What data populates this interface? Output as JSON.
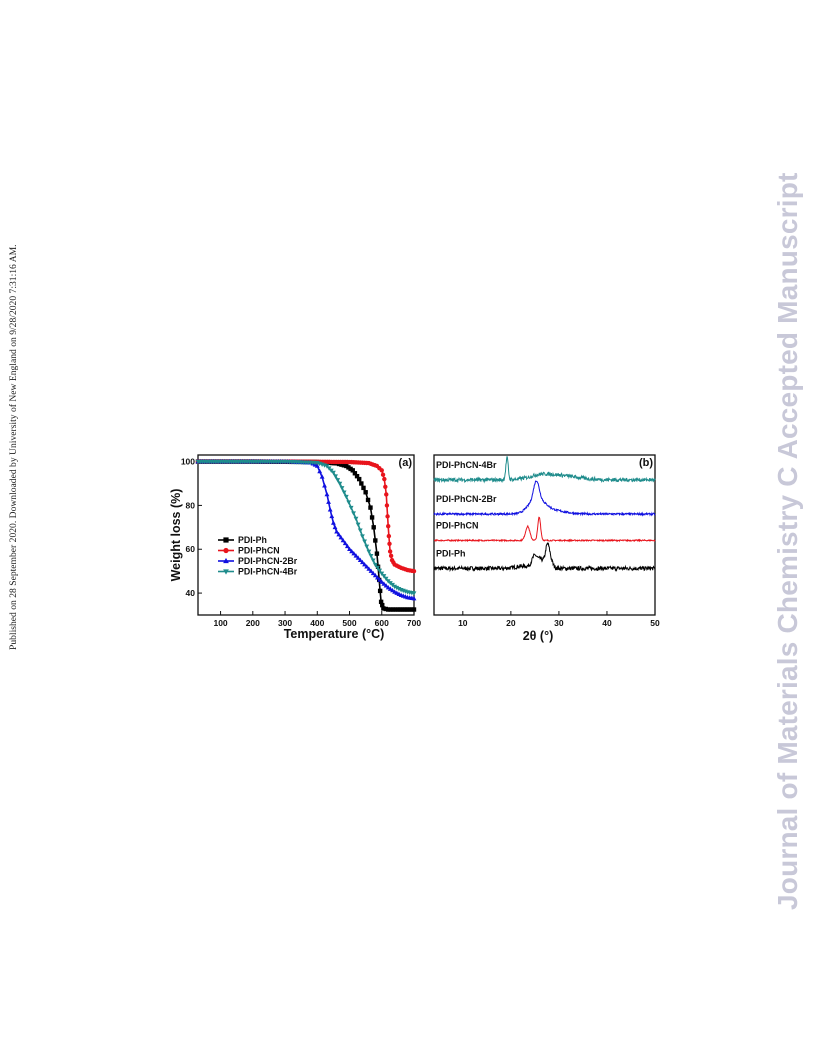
{
  "sidebar_text": "Published on 28 September 2020. Downloaded by University of New England on 9/28/2020 7:31:16 AM.",
  "watermark_text": "Journal of Materials Chemistry C Accepted Manuscript",
  "chart_data": [
    {
      "panel_label": "(a)",
      "type": "line",
      "xlabel": "Temperature (°C)",
      "ylabel": "Weight loss (%)",
      "xlim": [
        30,
        700
      ],
      "ylim": [
        30,
        103
      ],
      "xticks": [
        100,
        200,
        300,
        400,
        500,
        600,
        700
      ],
      "yticks": [
        40,
        60,
        80,
        100
      ],
      "legend_position": "left-middle",
      "series": [
        {
          "name": "PDI-Ph",
          "color": "#000000",
          "marker": "square",
          "x": [
            30,
            200,
            400,
            460,
            490,
            510,
            530,
            550,
            565,
            575,
            585,
            592,
            598,
            605,
            620,
            650,
            700
          ],
          "y": [
            100,
            100,
            99.8,
            99.2,
            98,
            96,
            92,
            86,
            79,
            70,
            58,
            46,
            36,
            33,
            32.5,
            32.5,
            32.5
          ]
        },
        {
          "name": "PDI-PhCN",
          "color": "#e8141c",
          "marker": "circle",
          "x": [
            30,
            300,
            500,
            560,
            585,
            600,
            608,
            614,
            618,
            622,
            626,
            632,
            640,
            660,
            680,
            700
          ],
          "y": [
            100,
            100,
            99.8,
            99.3,
            98,
            96,
            92,
            85,
            75,
            66,
            59,
            55,
            53,
            51.5,
            50.5,
            50
          ]
        },
        {
          "name": "PDI-PhCN-2Br",
          "color": "#1010e0",
          "marker": "triangle-up",
          "x": [
            30,
            300,
            380,
            400,
            415,
            430,
            440,
            450,
            460,
            480,
            500,
            520,
            540,
            560,
            580,
            600,
            620,
            640,
            660,
            680,
            700
          ],
          "y": [
            100,
            100,
            99.5,
            98,
            93,
            85,
            78,
            72,
            68,
            64,
            60,
            57,
            54,
            51,
            48,
            45,
            42.5,
            40.5,
            39,
            38,
            37.5
          ]
        },
        {
          "name": "PDI-PhCN-4Br",
          "color": "#1f8c8c",
          "marker": "triangle-down",
          "x": [
            30,
            300,
            400,
            430,
            450,
            470,
            490,
            505,
            520,
            540,
            560,
            580,
            600,
            620,
            640,
            660,
            680,
            700
          ],
          "y": [
            100,
            100,
            99.5,
            98,
            95,
            90,
            84,
            79,
            74,
            66,
            59,
            53,
            49,
            45.5,
            43,
            41.5,
            40.5,
            40
          ]
        }
      ]
    },
    {
      "panel_label": "(b)",
      "type": "line",
      "xlabel": "2θ (°)",
      "xlim": [
        4,
        50
      ],
      "xticks": [
        10,
        20,
        30,
        40,
        50
      ],
      "yticks": [],
      "series": [
        {
          "name": "PDI-Ph",
          "color": "#000000",
          "baseline": 30,
          "peaks": [
            [
              22.5,
              1.5,
              1.5
            ],
            [
              25.0,
              8,
              0.6
            ],
            [
              26.3,
              5,
              0.5
            ],
            [
              27.6,
              14,
              0.45
            ],
            [
              28.3,
              4,
              0.5
            ]
          ],
          "noise": 1.3
        },
        {
          "name": "PDI-PhCN",
          "color": "#e8141c",
          "baseline": 48,
          "peaks": [
            [
              23.5,
              9,
              0.45
            ],
            [
              25.9,
              15,
              0.3
            ]
          ],
          "noise": 0.4
        },
        {
          "name": "PDI-PhCN-2Br",
          "color": "#1010e0",
          "baseline": 65,
          "peaks": [
            [
              25.3,
              14,
              0.6
            ],
            [
              26.3,
              5,
              1.2
            ],
            [
              24.0,
              4,
              1.0
            ],
            [
              27.5,
              3,
              3
            ]
          ],
          "noise": 0.6
        },
        {
          "name": "PDI-PhCN-4Br",
          "color": "#1f8c8c",
          "baseline": 87,
          "peaks": [
            [
              19.2,
              14,
              0.25
            ],
            [
              29.5,
              3,
              4
            ],
            [
              26.0,
              1.5,
              2
            ]
          ],
          "noise": 1.2
        }
      ]
    }
  ]
}
